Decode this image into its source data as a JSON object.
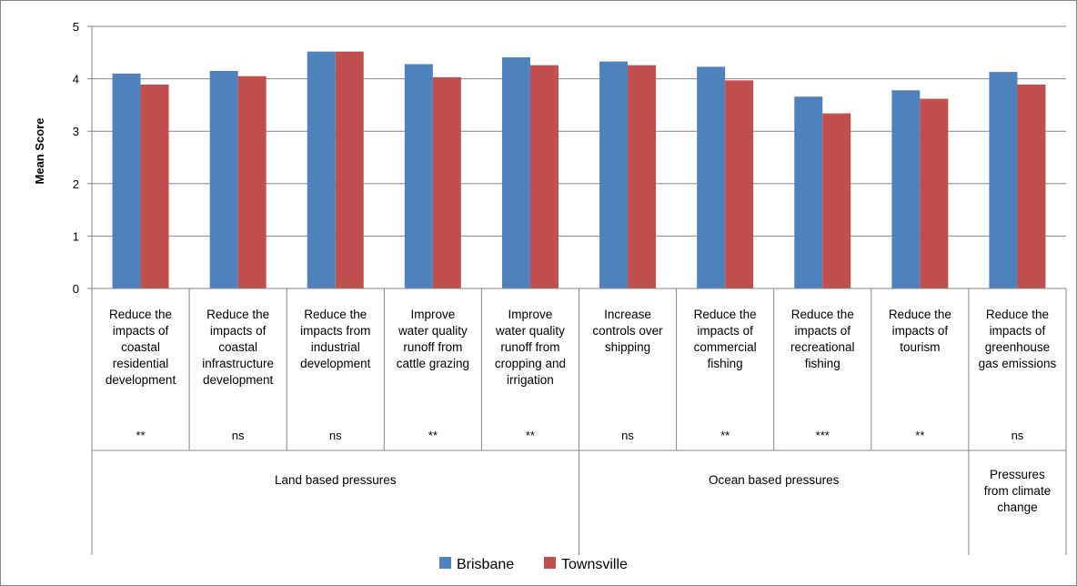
{
  "chart_data": {
    "type": "bar",
    "title": "",
    "xlabel": "",
    "ylabel": "Mean Score",
    "ylim": [
      0,
      5
    ],
    "yticks": [
      "0",
      "1",
      "2",
      "3",
      "4",
      "5"
    ],
    "grid": true,
    "legend_position": "bottom",
    "categories": [
      [
        "Reduce the",
        "impacts of",
        "coastal",
        "residential",
        "development"
      ],
      [
        "Reduce the",
        "impacts of",
        "coastal",
        "infrastructure",
        "development"
      ],
      [
        "Reduce the",
        "impacts from",
        "industrial",
        "development"
      ],
      [
        "Improve",
        "water quality",
        "runoff from",
        "cattle grazing"
      ],
      [
        "Improve",
        "water quality",
        "runoff from",
        "cropping and",
        "irrigation"
      ],
      [
        "Increase",
        "controls over",
        "shipping"
      ],
      [
        "Reduce the",
        "impacts of",
        "commercial",
        "fishing"
      ],
      [
        "Reduce the",
        "impacts of",
        "recreational",
        "fishing"
      ],
      [
        "Reduce the",
        "impacts of",
        "tourism"
      ],
      [
        "Reduce the",
        "impacts of",
        "greenhouse",
        "gas emissions"
      ]
    ],
    "significance": [
      "**",
      "ns",
      "ns",
      "**",
      "**",
      "ns",
      "**",
      "***",
      "**",
      "ns"
    ],
    "groups": [
      {
        "label": [
          "Land based pressures"
        ],
        "span": 5
      },
      {
        "label": [
          "Ocean based pressures"
        ],
        "span": 4
      },
      {
        "label": [
          "Pressures",
          "from climate",
          "change"
        ],
        "span": 1
      }
    ],
    "series": [
      {
        "name": "Brisbane",
        "color": "#4F81BD",
        "values": [
          4.1,
          4.15,
          4.52,
          4.28,
          4.41,
          4.33,
          4.23,
          3.66,
          3.78,
          4.13
        ]
      },
      {
        "name": "Townsville",
        "color": "#C0504D",
        "values": [
          3.89,
          4.05,
          4.52,
          4.03,
          4.26,
          4.26,
          3.97,
          3.34,
          3.62,
          3.89
        ]
      }
    ]
  }
}
